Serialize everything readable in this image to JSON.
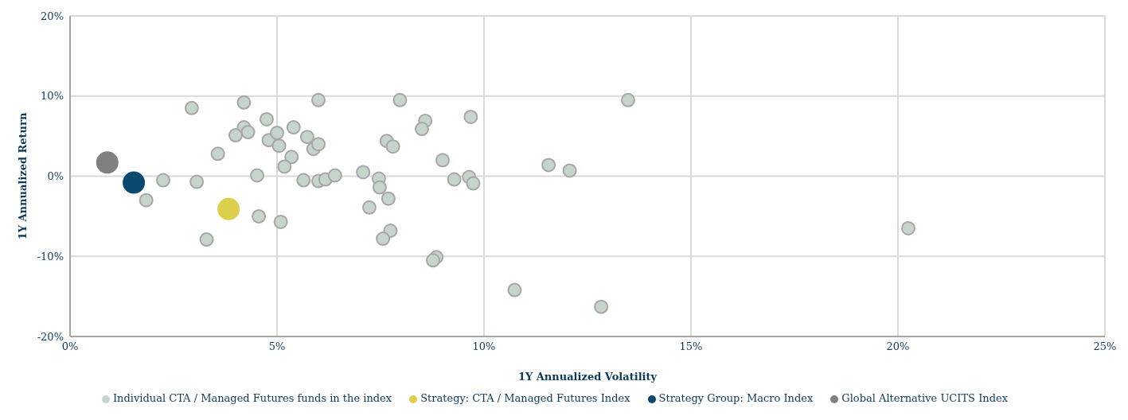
{
  "chart_data": {
    "type": "scatter",
    "xlabel": "1Y Annualized Volatility",
    "ylabel": "1Y Annualized Return",
    "xlim": [
      0,
      25
    ],
    "xticks": [
      {
        "value": 0,
        "label": "0%"
      },
      {
        "value": 5,
        "label": "5%"
      },
      {
        "value": 10,
        "label": "10%"
      },
      {
        "value": 15,
        "label": "15%"
      },
      {
        "value": 20,
        "label": "20%"
      },
      {
        "value": 25,
        "label": "25%"
      }
    ],
    "ylim": [
      -20,
      20
    ],
    "yticks": [
      {
        "value": -20,
        "label": "-20%"
      },
      {
        "value": -10,
        "label": "-10%"
      },
      {
        "value": 0,
        "label": "0%"
      },
      {
        "value": 10,
        "label": "10%"
      },
      {
        "value": 20,
        "label": "20%"
      }
    ],
    "grid": true,
    "legend": "bottom",
    "marker": "circle",
    "series": [
      {
        "name": "Individual CTA / Managed Futures funds in the index",
        "color": "#c5d5c9",
        "x": [
          2.94,
          4.2,
          6.0,
          4.75,
          4.2,
          4.3,
          4.0,
          4.8,
          5.0,
          5.4,
          5.05,
          5.73,
          5.88,
          6.0,
          5.35,
          5.18,
          3.57,
          4.52,
          2.25,
          3.06,
          1.84,
          4.56,
          5.09,
          3.3,
          5.64,
          6.0,
          6.17,
          6.4,
          7.08,
          7.46,
          7.48,
          7.69,
          7.23,
          7.74,
          7.56,
          8.85,
          8.77,
          7.97,
          8.58,
          8.5,
          7.65,
          7.8,
          9.0,
          9.28,
          9.64,
          9.74,
          9.68,
          11.56,
          12.07,
          13.48,
          10.74,
          12.83,
          20.25
        ],
        "values": [
          8.5,
          9.2,
          9.5,
          7.1,
          6.1,
          5.5,
          5.1,
          4.5,
          5.4,
          6.1,
          3.8,
          4.9,
          3.4,
          4.0,
          2.4,
          1.2,
          2.8,
          0.1,
          -0.5,
          -0.7,
          -3.0,
          -5.0,
          -5.7,
          -7.9,
          -0.5,
          -0.6,
          -0.4,
          0.1,
          0.5,
          -0.3,
          -1.4,
          -2.8,
          -3.9,
          -6.8,
          -7.8,
          -10.1,
          -10.5,
          9.5,
          6.9,
          5.9,
          4.4,
          3.7,
          2.0,
          -0.4,
          -0.1,
          -0.9,
          7.4,
          1.4,
          0.7,
          9.5,
          -14.2,
          -16.3,
          -6.5
        ]
      },
      {
        "name": "Strategy: CTA / Managed Futures Index",
        "color": "#dccf4c",
        "x": [
          3.83
        ],
        "values": [
          -4.1
        ]
      },
      {
        "name": "Strategy Group: Macro Index",
        "color": "#0b4a6f",
        "x": [
          1.54
        ],
        "values": [
          -0.8
        ]
      },
      {
        "name": "Global Alternative UCITS Index",
        "color": "#808080",
        "x": [
          0.9
        ],
        "values": [
          1.7
        ]
      }
    ]
  }
}
